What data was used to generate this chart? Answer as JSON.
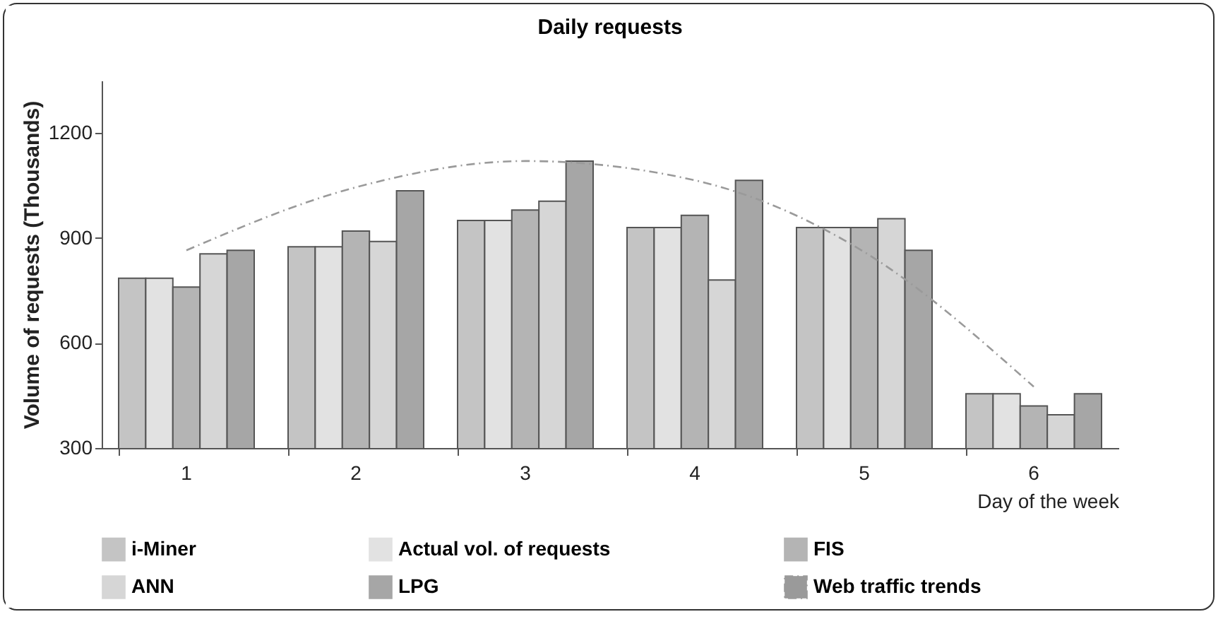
{
  "chart_data": {
    "type": "bar",
    "title": "Daily requests",
    "xlabel": "Day of the week",
    "ylabel": "Volume of requests (Thousands)",
    "categories": [
      "1",
      "2",
      "3",
      "4",
      "5",
      "6"
    ],
    "series": [
      {
        "name": "i-Miner",
        "color": "#c4c4c4",
        "values": [
          785,
          875,
          950,
          930,
          930,
          455
        ]
      },
      {
        "name": "Actual vol. of requests",
        "color": "#e2e2e2",
        "values": [
          785,
          875,
          950,
          930,
          930,
          455
        ]
      },
      {
        "name": "FIS",
        "color": "#b4b4b4",
        "values": [
          760,
          920,
          980,
          965,
          930,
          420
        ]
      },
      {
        "name": "ANN",
        "color": "#d6d6d6",
        "values": [
          855,
          890,
          1005,
          780,
          955,
          395
        ]
      },
      {
        "name": "LPG",
        "color": "#a6a6a6",
        "values": [
          865,
          1035,
          1120,
          1065,
          865,
          455
        ]
      },
      {
        "name": "Web traffic trends",
        "type": "line",
        "color": "#9a9a9a",
        "line_style": "dashed",
        "values": [
          865,
          1045,
          1120,
          1065,
          860,
          475
        ]
      }
    ],
    "ylim": [
      300,
      1350
    ],
    "yticks": [
      300,
      600,
      900,
      1200
    ],
    "grid": false,
    "legend": "bottom"
  }
}
